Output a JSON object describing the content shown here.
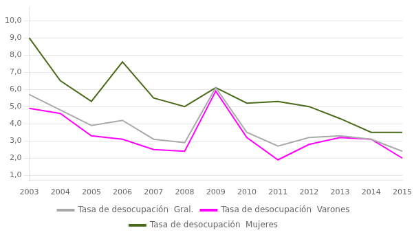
{
  "chart_data": {
    "type": "line",
    "categories": [
      "2003",
      "2004",
      "2005",
      "2006",
      "2007",
      "2008",
      "2009",
      "2010",
      "2011",
      "2012",
      "2013",
      "2014",
      "2015"
    ],
    "series": [
      {
        "name": "Tasa de desocupación  Gral.",
        "color": "#aaaaaa",
        "values": [
          5.7,
          4.8,
          3.9,
          4.2,
          3.1,
          2.9,
          6.1,
          3.5,
          2.7,
          3.2,
          3.3,
          3.1,
          2.4
        ]
      },
      {
        "name": "Tasa de desocupación  Varones",
        "color": "#ff00ff",
        "values": [
          4.9,
          4.6,
          3.3,
          3.1,
          2.5,
          2.4,
          5.9,
          3.2,
          1.9,
          2.8,
          3.2,
          3.1,
          2.0
        ]
      },
      {
        "name": "Tasa de desocupación  Mujeres",
        "color": "#4a6a1a",
        "values": [
          9.0,
          6.5,
          5.3,
          7.6,
          5.5,
          5.0,
          6.1,
          5.2,
          5.3,
          5.0,
          4.3,
          3.5,
          3.5
        ]
      }
    ],
    "ylim": [
      0.7,
      10.8
    ],
    "yticks": [
      {
        "value": 1,
        "label": "1,0"
      },
      {
        "value": 2,
        "label": "2,0"
      },
      {
        "value": 3,
        "label": "3,0"
      },
      {
        "value": 4,
        "label": "4,0"
      },
      {
        "value": 5,
        "label": "5,0"
      },
      {
        "value": 6,
        "label": "6,0"
      },
      {
        "value": 7,
        "label": "7,0"
      },
      {
        "value": 8,
        "label": "8,0"
      },
      {
        "value": 9,
        "label": "9,0"
      },
      {
        "value": 10,
        "label": "10,0"
      }
    ],
    "grid": true,
    "legend": "bottom"
  }
}
